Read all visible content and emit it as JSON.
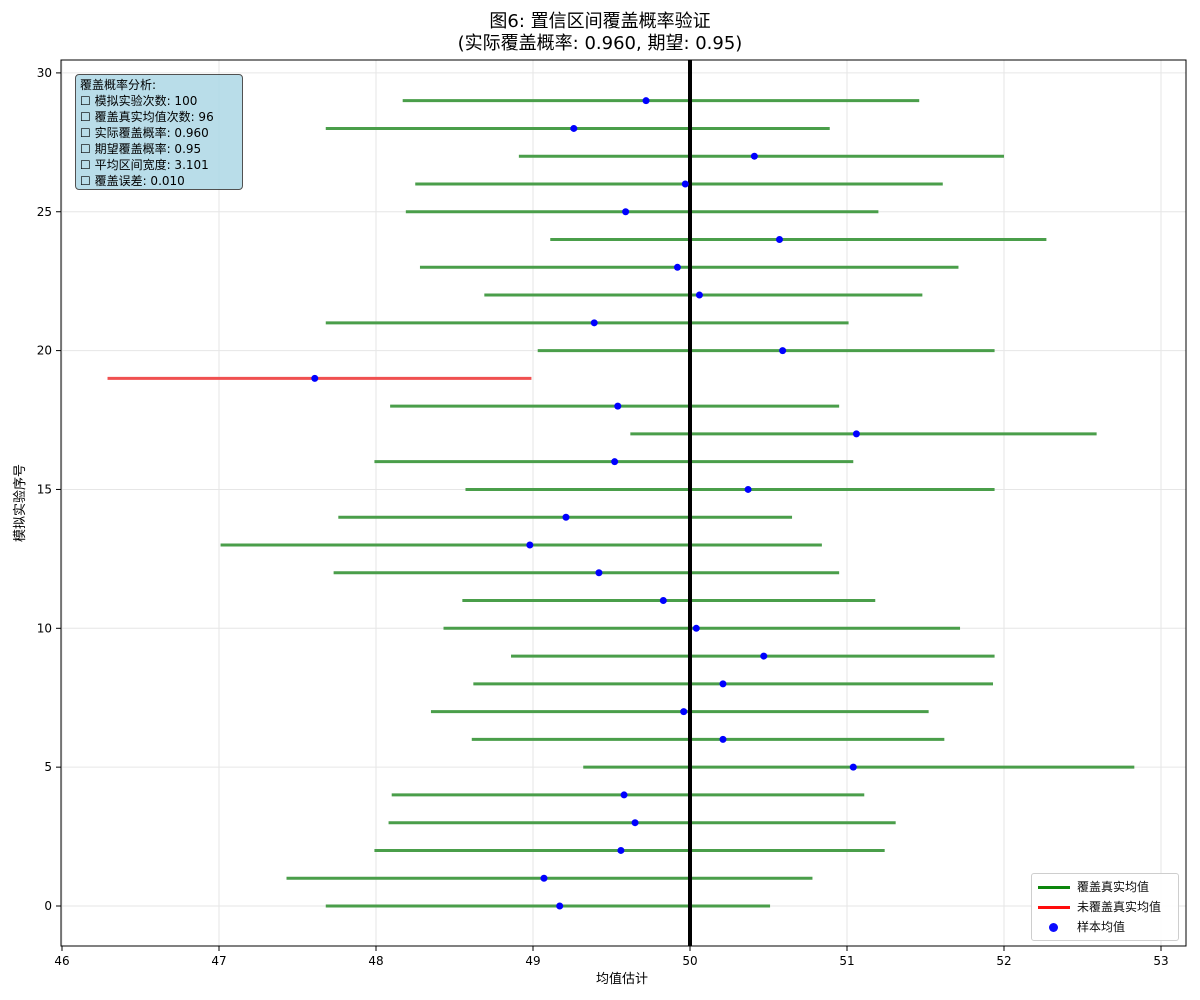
{
  "chart_data": {
    "type": "errorbar",
    "title": "图6: 置信区间覆盖概率验证",
    "subtitle": "(实际覆盖概率: 0.960, 期望: 0.95)",
    "xlabel": "均值估计",
    "ylabel": "模拟实验序号",
    "xlim": [
      46,
      53
    ],
    "ylim": [
      -1.5,
      30.5
    ],
    "x_ticks": [
      "46",
      "47",
      "48",
      "49",
      "50",
      "51",
      "52",
      "53"
    ],
    "y_ticks": [
      "0",
      "5",
      "10",
      "15",
      "20",
      "25",
      "30"
    ],
    "grid": true,
    "true_mean": 50,
    "legend": [
      {
        "label": "覆盖真实均值",
        "color": "#008000",
        "kind": "line"
      },
      {
        "label": "未覆盖真实均值",
        "color": "#ff0000",
        "kind": "line"
      },
      {
        "label": "样本均值",
        "color": "#0000ff",
        "kind": "marker"
      }
    ],
    "legend_position": "lower right",
    "intervals": [
      {
        "index": 0,
        "lower": 47.68,
        "mean": 49.17,
        "upper": 50.51,
        "covers": true
      },
      {
        "index": 1,
        "lower": 47.43,
        "mean": 49.07,
        "upper": 50.78,
        "covers": true
      },
      {
        "index": 2,
        "lower": 47.99,
        "mean": 49.56,
        "upper": 51.24,
        "covers": true
      },
      {
        "index": 3,
        "lower": 48.08,
        "mean": 49.65,
        "upper": 51.31,
        "covers": true
      },
      {
        "index": 4,
        "lower": 48.1,
        "mean": 49.58,
        "upper": 51.11,
        "covers": true
      },
      {
        "index": 5,
        "lower": 49.32,
        "mean": 51.04,
        "upper": 52.83,
        "covers": true
      },
      {
        "index": 6,
        "lower": 48.61,
        "mean": 50.21,
        "upper": 51.62,
        "covers": true
      },
      {
        "index": 7,
        "lower": 48.35,
        "mean": 49.96,
        "upper": 51.52,
        "covers": true
      },
      {
        "index": 8,
        "lower": 48.62,
        "mean": 50.21,
        "upper": 51.93,
        "covers": true
      },
      {
        "index": 9,
        "lower": 48.86,
        "mean": 50.47,
        "upper": 51.94,
        "covers": true
      },
      {
        "index": 10,
        "lower": 48.43,
        "mean": 50.04,
        "upper": 51.72,
        "covers": true
      },
      {
        "index": 11,
        "lower": 48.55,
        "mean": 49.83,
        "upper": 51.18,
        "covers": true
      },
      {
        "index": 12,
        "lower": 47.73,
        "mean": 49.42,
        "upper": 50.95,
        "covers": true
      },
      {
        "index": 13,
        "lower": 47.01,
        "mean": 48.98,
        "upper": 50.84,
        "covers": true
      },
      {
        "index": 14,
        "lower": 47.76,
        "mean": 49.21,
        "upper": 50.65,
        "covers": true
      },
      {
        "index": 15,
        "lower": 48.57,
        "mean": 50.37,
        "upper": 51.94,
        "covers": true
      },
      {
        "index": 16,
        "lower": 47.99,
        "mean": 49.52,
        "upper": 51.04,
        "covers": true
      },
      {
        "index": 17,
        "lower": 49.62,
        "mean": 51.06,
        "upper": 52.59,
        "covers": true
      },
      {
        "index": 18,
        "lower": 48.09,
        "mean": 49.54,
        "upper": 50.95,
        "covers": true
      },
      {
        "index": 19,
        "lower": 46.29,
        "mean": 47.61,
        "upper": 48.99,
        "covers": false
      },
      {
        "index": 20,
        "lower": 49.03,
        "mean": 50.59,
        "upper": 51.94,
        "covers": true
      },
      {
        "index": 21,
        "lower": 47.68,
        "mean": 49.39,
        "upper": 51.01,
        "covers": true
      },
      {
        "index": 22,
        "lower": 48.69,
        "mean": 50.06,
        "upper": 51.48,
        "covers": true
      },
      {
        "index": 23,
        "lower": 48.28,
        "mean": 49.92,
        "upper": 51.71,
        "covers": true
      },
      {
        "index": 24,
        "lower": 49.11,
        "mean": 50.57,
        "upper": 52.27,
        "covers": true
      },
      {
        "index": 25,
        "lower": 48.19,
        "mean": 49.59,
        "upper": 51.2,
        "covers": true
      },
      {
        "index": 26,
        "lower": 48.25,
        "mean": 49.97,
        "upper": 51.61,
        "covers": true
      },
      {
        "index": 27,
        "lower": 48.91,
        "mean": 50.41,
        "upper": 52.0,
        "covers": true
      },
      {
        "index": 28,
        "lower": 47.68,
        "mean": 49.26,
        "upper": 50.89,
        "covers": true
      },
      {
        "index": 29,
        "lower": 48.17,
        "mean": 49.72,
        "upper": 51.46,
        "covers": true
      }
    ],
    "annotation": {
      "heading": "覆盖概率分析:",
      "lines": [
        "☐ 模拟实验次数: 100",
        "☐ 覆盖真实均值次数: 96",
        "☐ 实际覆盖概率: 0.960",
        "☐ 期望覆盖概率: 0.95",
        "☐ 平均区间宽度: 3.101",
        "☐ 覆盖误差: 0.010"
      ]
    }
  },
  "colors": {
    "cover": "#4a9e4a",
    "miss": "#f05050",
    "mean_marker": "#0000ff",
    "true_mean_line": "#000000",
    "info_box_bg": "#add8e6",
    "grid": "#e6e6e6"
  }
}
